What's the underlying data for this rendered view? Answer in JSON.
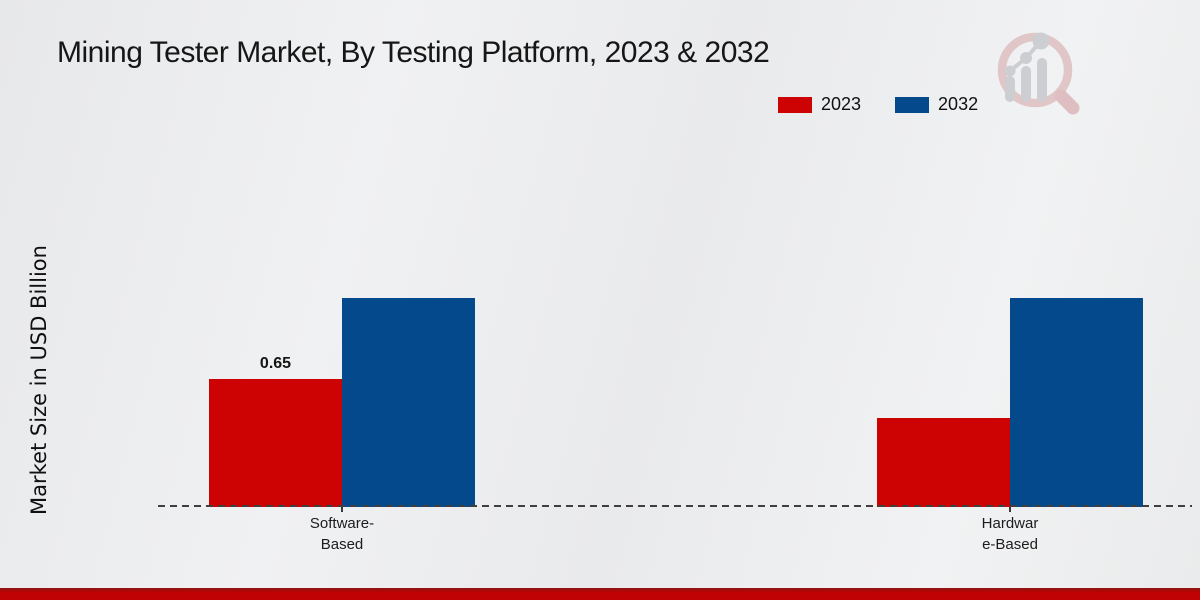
{
  "chart_data": {
    "type": "bar",
    "title": "Mining Tester Market, By Testing Platform, 2023 & 2032",
    "xlabel": "",
    "ylabel": "Market Size in USD Billion",
    "categories": [
      "Software-Based",
      "Hardware-Based"
    ],
    "category_tick_labels": [
      "Software-\nBased",
      "Hardwar\ne-Based"
    ],
    "series": [
      {
        "name": "2023",
        "color": "#cc0302",
        "values": [
          0.65,
          0.45
        ]
      },
      {
        "name": "2032",
        "color": "#04498c",
        "values": [
          1.06,
          1.06
        ]
      }
    ],
    "data_labels": [
      {
        "series_index": 0,
        "category_index": 0,
        "text": "0.65"
      }
    ],
    "ylim": [
      0,
      1.4
    ],
    "grid": false,
    "legend_position": "top-right",
    "baseline_style": "dashed"
  },
  "branding": {
    "logo_name": "market-research-future-magnifier-logo",
    "logo_ring_color": "#e0c2c4",
    "logo_handle_color": "#dcb9bc",
    "logo_bars_color": "#c9cbce"
  },
  "colors": {
    "bottom_strip_dark": "#8f1410",
    "bottom_strip": "#c00202",
    "baseline": "#3f3f3f",
    "background": "#ecedee"
  }
}
